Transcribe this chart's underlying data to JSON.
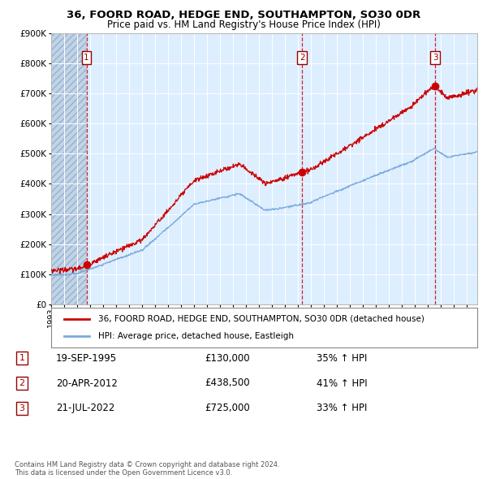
{
  "title1": "36, FOORD ROAD, HEDGE END, SOUTHAMPTON, SO30 0DR",
  "title2": "Price paid vs. HM Land Registry's House Price Index (HPI)",
  "hpi_label": "HPI: Average price, detached house, Eastleigh",
  "price_label": "36, FOORD ROAD, HEDGE END, SOUTHAMPTON, SO30 0DR (detached house)",
  "hpi_color": "#7aaadd",
  "price_color": "#cc0000",
  "bg_color": "#ddeeff",
  "sale_dates_years": [
    1995.72,
    2012.31,
    2022.55
  ],
  "sale_prices": [
    130000,
    438500,
    725000
  ],
  "sale_labels": [
    "1",
    "2",
    "3"
  ],
  "sale_date_strs": [
    "19-SEP-1995",
    "20-APR-2012",
    "21-JUL-2022"
  ],
  "sale_pct": [
    "35%",
    "41%",
    "33%"
  ],
  "copyright_text": "Contains HM Land Registry data © Crown copyright and database right 2024.\nThis data is licensed under the Open Government Licence v3.0.",
  "ylim": [
    0,
    900000
  ],
  "xlim_start": 1993.0,
  "xlim_end": 2025.8
}
